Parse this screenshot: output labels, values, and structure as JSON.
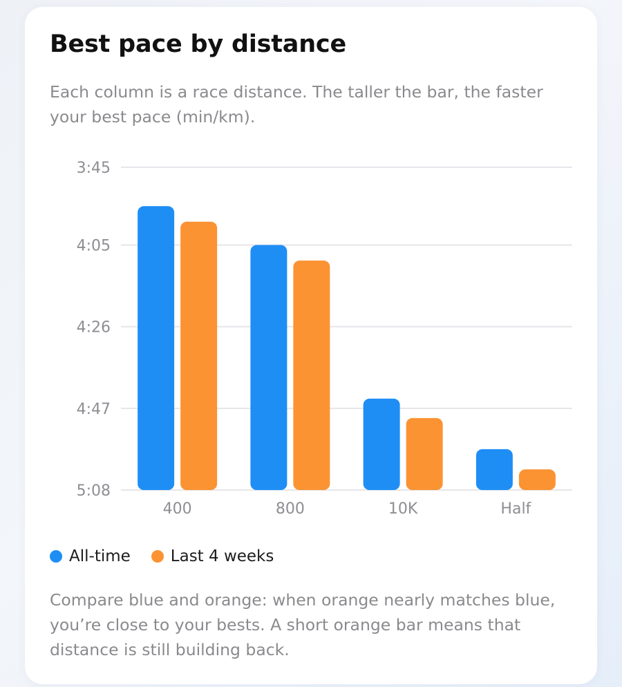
{
  "card": {
    "title": "Best pace by distance",
    "subtitle": "Each column is a race distance. The taller the bar, the faster your best pace (min/km).",
    "footnote": "Compare blue and orange: when orange nearly matches blue, you’re close to your bests. A short orange bar means that distance is still building back."
  },
  "legend": [
    {
      "label": "All-time",
      "color": "#1e8ef5"
    },
    {
      "label": "Last 4 weeks",
      "color": "#fb9332"
    }
  ],
  "chart_data": {
    "type": "bar",
    "title": "Best pace by distance",
    "xlabel": "",
    "ylabel": "",
    "y_axis_inverted": true,
    "y_unit": "seconds per km (min:sec)",
    "yticks": [
      "3:45",
      "4:05",
      "4:26",
      "4:47",
      "5:08"
    ],
    "ylim": [
      225,
      308
    ],
    "grid": true,
    "legend_position": "bottom-left",
    "categories": [
      "400",
      "800",
      "10K",
      "Half"
    ],
    "series": [
      {
        "name": "All-time",
        "color": "#1e8ef5",
        "values": [
          235,
          245,
          284.5,
          297.5
        ]
      },
      {
        "name": "Last 4 weeks",
        "color": "#fb9332",
        "values": [
          239,
          249,
          289.5,
          302.7
        ]
      }
    ]
  }
}
